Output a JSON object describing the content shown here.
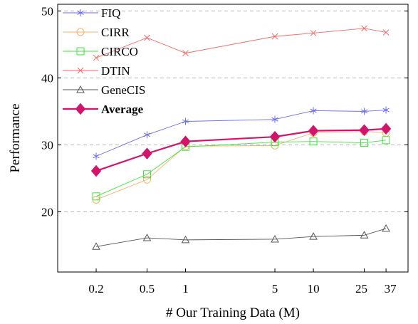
{
  "chart_data": {
    "type": "line",
    "xlabel": "# Our Training Data (M)",
    "ylabel": "Performance",
    "x": [
      0.2,
      0.5,
      1,
      5,
      10,
      25,
      37
    ],
    "x_tick_labels": [
      "0.2",
      "0.5",
      "1",
      "5",
      "10",
      "25",
      "37"
    ],
    "x_scale": "log",
    "ylim": [
      11,
      51
    ],
    "y_ticks": [
      20,
      30,
      40,
      50
    ],
    "grid": "horizontal dashed",
    "legend_position": "top-left",
    "series": [
      {
        "name": "FIQ",
        "color": "#6b6bf0",
        "marker": "star",
        "values": [
          28.3,
          31.5,
          33.5,
          33.8,
          35.1,
          35.0,
          35.2
        ]
      },
      {
        "name": "CIRR",
        "color": "#f5b26b",
        "marker": "circle",
        "values": [
          21.8,
          24.8,
          29.8,
          29.9,
          31.8,
          32.0,
          31.8
        ]
      },
      {
        "name": "CIRCO",
        "color": "#3ee63e",
        "marker": "square",
        "values": [
          22.3,
          25.6,
          29.7,
          30.4,
          30.5,
          30.3,
          30.7
        ]
      },
      {
        "name": "DTIN",
        "color": "#f26a6a",
        "marker": "x",
        "values": [
          43.0,
          46.0,
          43.7,
          46.2,
          46.7,
          47.4,
          46.8
        ]
      },
      {
        "name": "GeneCIS",
        "color": "#555555",
        "marker": "triangle",
        "values": [
          14.8,
          16.1,
          15.8,
          15.9,
          16.3,
          16.5,
          17.5
        ]
      },
      {
        "name": "Average",
        "color": "#d4136a",
        "marker": "diamond",
        "bold": true,
        "values": [
          26.1,
          28.7,
          30.5,
          31.2,
          32.1,
          32.2,
          32.4
        ]
      }
    ]
  }
}
